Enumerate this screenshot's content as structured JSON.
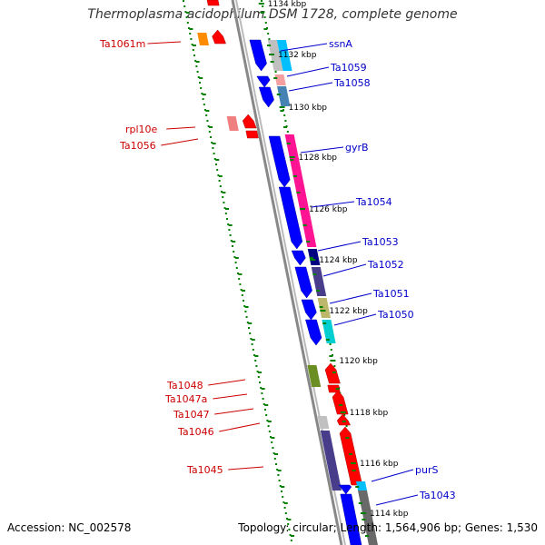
{
  "title": "Thermoplasma acidophilum DSM 1728, complete genome",
  "footer": {
    "accession_label": "Accession:",
    "accession": "NC_002578",
    "topology_label": "Topology:",
    "topology": "circular;",
    "length_label": "Length:",
    "length": "1,564,906 bp;",
    "genes_label": "Genes:",
    "genes": "1,530"
  },
  "colors": {
    "backbone": "#888888",
    "reverse_strand_gene": "#ff0000",
    "forward_strand_gene": "#0000ff",
    "tick": "#008000",
    "reverse_label": "#cc0000",
    "forward_label": "#0000cc"
  },
  "scale_labels": [
    "1134 kbp",
    "1132 kbp",
    "1130 kbp",
    "1128 kbp",
    "1126 kbp",
    "1124 kbp",
    "1122 kbp",
    "1120 kbp",
    "1118 kbp",
    "1116 kbp",
    "1114 kbp"
  ],
  "reverse_genes": [
    "Ta1061m",
    "rpl10e",
    "Ta1056",
    "Ta1048",
    "Ta1047a",
    "Ta1047",
    "Ta1046",
    "Ta1045"
  ],
  "forward_genes": [
    "ssnA",
    "Ta1059",
    "Ta1058",
    "gyrB",
    "Ta1054",
    "Ta1053",
    "Ta1052",
    "Ta1051",
    "Ta1050",
    "purS",
    "Ta1043"
  ]
}
